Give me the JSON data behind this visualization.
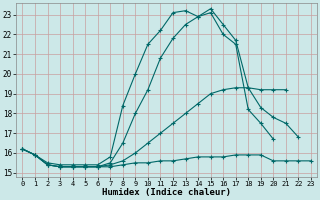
{
  "title": "",
  "xlabel": "Humidex (Indice chaleur)",
  "bg_color": "#cce8e8",
  "line_color": "#006868",
  "grid_color": "#b0d0d0",
  "xlim": [
    -0.5,
    23.5
  ],
  "ylim": [
    14.8,
    23.6
  ],
  "xticks": [
    0,
    1,
    2,
    3,
    4,
    5,
    6,
    7,
    8,
    9,
    10,
    11,
    12,
    13,
    14,
    15,
    16,
    17,
    18,
    19,
    20,
    21,
    22,
    23
  ],
  "yticks": [
    15,
    16,
    17,
    18,
    19,
    20,
    21,
    22,
    23
  ],
  "lines": [
    {
      "x": [
        0,
        1,
        2,
        3,
        4,
        5,
        6,
        7,
        8,
        9,
        10,
        11,
        12,
        13,
        14,
        15,
        16,
        17,
        18,
        19,
        20,
        21
      ],
      "y": [
        16.2,
        15.9,
        15.5,
        15.4,
        15.4,
        15.4,
        15.4,
        15.8,
        18.4,
        20.0,
        21.5,
        22.2,
        23.1,
        23.2,
        22.9,
        23.3,
        22.5,
        21.7,
        19.3,
        19.2,
        19.2,
        19.2
      ]
    },
    {
      "x": [
        0,
        1,
        2,
        3,
        4,
        5,
        6,
        7,
        8,
        9,
        10,
        11,
        12,
        13,
        14,
        15,
        16,
        17,
        18,
        19,
        20,
        21,
        22,
        23
      ],
      "y": [
        16.2,
        15.9,
        15.4,
        15.3,
        15.3,
        15.3,
        15.3,
        15.5,
        16.5,
        18.0,
        19.2,
        20.8,
        21.8,
        22.5,
        22.9,
        23.1,
        22.0,
        21.5,
        18.2,
        17.5,
        16.7,
        null,
        null,
        null
      ]
    },
    {
      "x": [
        0,
        1,
        2,
        3,
        4,
        5,
        6,
        7,
        8,
        9,
        10,
        11,
        12,
        13,
        14,
        15,
        16,
        17,
        18,
        19,
        20,
        21,
        22,
        23
      ],
      "y": [
        16.2,
        15.9,
        15.4,
        15.3,
        15.3,
        15.3,
        15.3,
        15.4,
        15.6,
        16.0,
        16.5,
        17.0,
        17.5,
        18.0,
        18.5,
        19.0,
        19.2,
        19.3,
        19.3,
        18.3,
        17.8,
        17.5,
        16.8,
        null
      ]
    },
    {
      "x": [
        0,
        1,
        2,
        3,
        4,
        5,
        6,
        7,
        8,
        9,
        10,
        11,
        12,
        13,
        14,
        15,
        16,
        17,
        18,
        19,
        20,
        21,
        22,
        23
      ],
      "y": [
        16.2,
        15.9,
        15.4,
        15.3,
        15.3,
        15.3,
        15.3,
        15.3,
        15.4,
        15.5,
        15.5,
        15.6,
        15.6,
        15.7,
        15.8,
        15.8,
        15.8,
        15.9,
        15.9,
        15.9,
        15.6,
        15.6,
        15.6,
        15.6
      ]
    }
  ]
}
